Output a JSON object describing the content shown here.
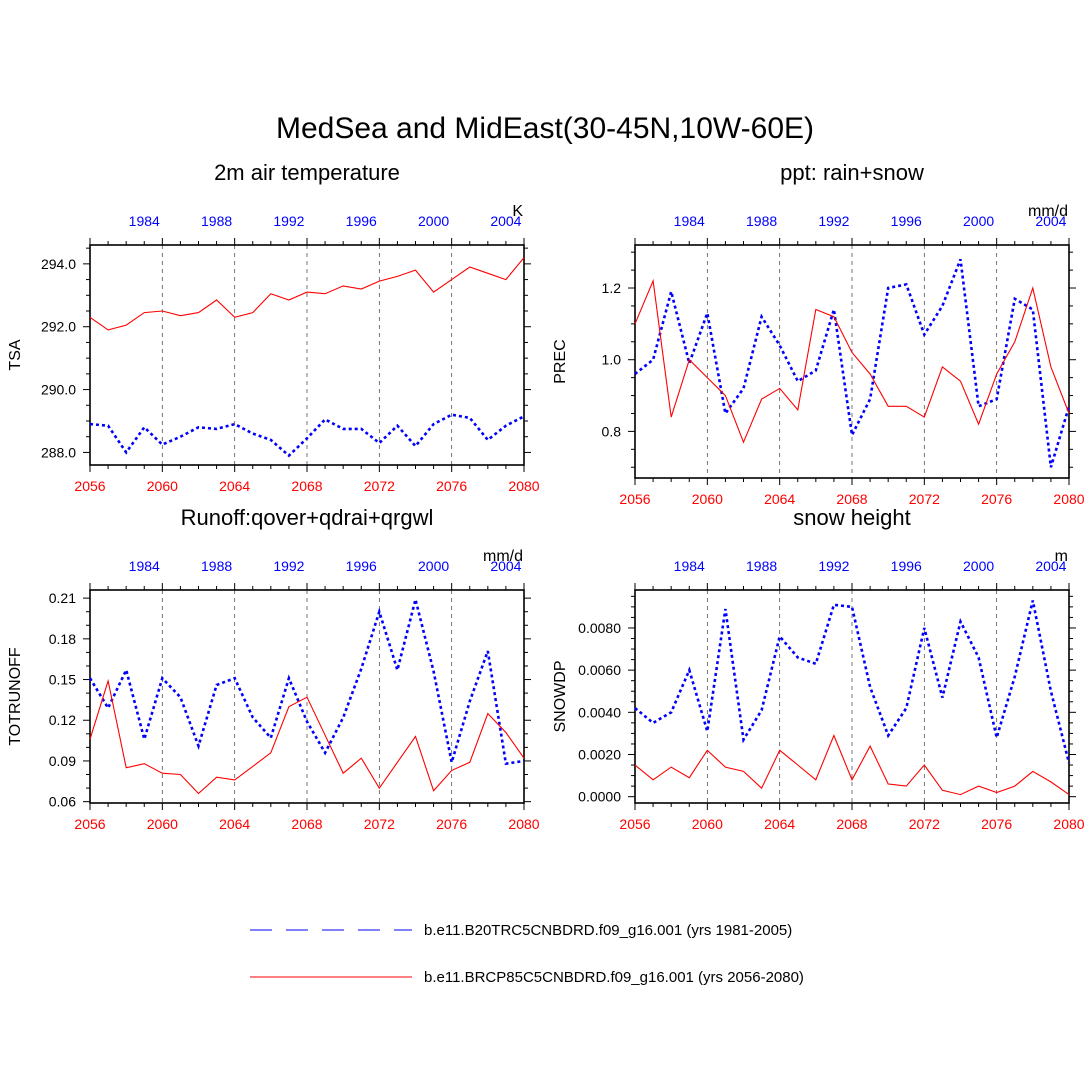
{
  "main_title": "MedSea and MidEast(30-45N,10W-60E)",
  "colors": {
    "historical": "#0000ff",
    "future": "#ff0000",
    "axis": "#000000"
  },
  "legend": {
    "historical_label": "b.e11.B20TRC5CNBDRD.f09_g16.001 (yrs 1981-2005)",
    "future_label": "b.e11.BRCP85C5CNBDRD.f09_g16.001 (yrs 2056-2080)"
  },
  "chart_data": [
    {
      "type": "line",
      "title": "2m air temperature",
      "ylabel": "TSA",
      "units": "K",
      "ylim": [
        287.6,
        294.6
      ],
      "yticks": [
        288,
        290,
        292,
        294
      ],
      "ytick_labels": [
        "288.0",
        "290.0",
        "292.0",
        "294.0"
      ],
      "yminor_step": 0.5,
      "top_ticks": [
        "1984",
        "1988",
        "1992",
        "1996",
        "2000",
        "2004"
      ],
      "bottom_ticks": [
        "2056",
        "2060",
        "2064",
        "2068",
        "2072",
        "2076",
        "2080"
      ],
      "series": [
        {
          "name": "b.e11.B20TRC5CNBDRD.f09_g16.001 (yrs 1981-2005)",
          "x": [
            1981,
            1982,
            1983,
            1984,
            1985,
            1986,
            1987,
            1988,
            1989,
            1990,
            1991,
            1992,
            1993,
            1994,
            1995,
            1996,
            1997,
            1998,
            1999,
            2000,
            2001,
            2002,
            2003,
            2004,
            2005
          ],
          "values": [
            288.9,
            288.85,
            288.0,
            288.8,
            288.25,
            288.5,
            288.8,
            288.75,
            288.9,
            288.6,
            288.4,
            287.9,
            288.45,
            289.05,
            288.75,
            288.75,
            288.3,
            288.85,
            288.2,
            288.9,
            289.2,
            289.1,
            288.4,
            288.85,
            289.15
          ]
        },
        {
          "name": "b.e11.BRCP85C5CNBDRD.f09_g16.001 (yrs 2056-2080)",
          "x": [
            2056,
            2057,
            2058,
            2059,
            2060,
            2061,
            2062,
            2063,
            2064,
            2065,
            2066,
            2067,
            2068,
            2069,
            2070,
            2071,
            2072,
            2073,
            2074,
            2075,
            2076,
            2077,
            2078,
            2079,
            2080
          ],
          "values": [
            292.3,
            291.9,
            292.05,
            292.45,
            292.5,
            292.35,
            292.45,
            292.85,
            292.3,
            292.45,
            293.05,
            292.85,
            293.1,
            293.05,
            293.3,
            293.2,
            293.45,
            293.6,
            293.8,
            293.1,
            293.5,
            293.9,
            293.7,
            293.5,
            294.2
          ]
        }
      ]
    },
    {
      "type": "line",
      "title": "ppt: rain+snow",
      "ylabel": "PREC",
      "units": "mm/d",
      "ylim": [
        0.67,
        1.32
      ],
      "yticks": [
        0.8,
        1.0,
        1.2
      ],
      "ytick_labels": [
        "0.8",
        "1.0",
        "1.2"
      ],
      "yminor_step": 0.05,
      "top_ticks": [
        "1984",
        "1988",
        "1992",
        "1996",
        "2000",
        "2004"
      ],
      "bottom_ticks": [
        "2056",
        "2060",
        "2064",
        "2068",
        "2072",
        "2076",
        "2080"
      ],
      "series": [
        {
          "name": "b.e11.B20TRC5CNBDRD.f09_g16.001 (yrs 1981-2005)",
          "x": [
            1981,
            1982,
            1983,
            1984,
            1985,
            1986,
            1987,
            1988,
            1989,
            1990,
            1991,
            1992,
            1993,
            1994,
            1995,
            1996,
            1997,
            1998,
            1999,
            2000,
            2001,
            2002,
            2003,
            2004,
            2005
          ],
          "values": [
            0.96,
            1.0,
            1.19,
            0.99,
            1.13,
            0.85,
            0.92,
            1.12,
            1.04,
            0.94,
            0.97,
            1.14,
            0.79,
            0.89,
            1.2,
            1.21,
            1.07,
            1.15,
            1.28,
            0.87,
            0.89,
            1.17,
            1.14,
            0.7,
            0.87
          ]
        },
        {
          "name": "b.e11.BRCP85C5CNBDRD.f09_g16.001 (yrs 2056-2080)",
          "x": [
            2056,
            2057,
            2058,
            2059,
            2060,
            2061,
            2062,
            2063,
            2064,
            2065,
            2066,
            2067,
            2068,
            2069,
            2070,
            2071,
            2072,
            2073,
            2074,
            2075,
            2076,
            2077,
            2078,
            2079,
            2080
          ],
          "values": [
            1.1,
            1.22,
            0.84,
            1.0,
            0.95,
            0.9,
            0.77,
            0.89,
            0.92,
            0.86,
            1.14,
            1.12,
            1.02,
            0.96,
            0.87,
            0.87,
            0.84,
            0.98,
            0.94,
            0.82,
            0.96,
            1.05,
            1.2,
            0.98,
            0.85
          ]
        }
      ]
    },
    {
      "type": "line",
      "title": "Runoff:qover+qdrai+qrgwl",
      "ylabel": "TOTRUNOFF",
      "units": "mm/d",
      "ylim": [
        0.059,
        0.216
      ],
      "yticks": [
        0.06,
        0.09,
        0.12,
        0.15,
        0.18,
        0.21
      ],
      "ytick_labels": [
        "0.06",
        "0.09",
        "0.12",
        "0.15",
        "0.18",
        "0.21"
      ],
      "yminor_step": 0.01,
      "top_ticks": [
        "1984",
        "1988",
        "1992",
        "1996",
        "2000",
        "2004"
      ],
      "bottom_ticks": [
        "2056",
        "2060",
        "2064",
        "2068",
        "2072",
        "2076",
        "2080"
      ],
      "series": [
        {
          "name": "b.e11.B20TRC5CNBDRD.f09_g16.001 (yrs 1981-2005)",
          "x": [
            1981,
            1982,
            1983,
            1984,
            1985,
            1986,
            1987,
            1988,
            1989,
            1990,
            1991,
            1992,
            1993,
            1994,
            1995,
            1996,
            1997,
            1998,
            1999,
            2000,
            2001,
            2002,
            2003,
            2004,
            2005
          ],
          "values": [
            0.151,
            0.129,
            0.157,
            0.106,
            0.151,
            0.137,
            0.101,
            0.146,
            0.151,
            0.122,
            0.107,
            0.151,
            0.119,
            0.096,
            0.122,
            0.158,
            0.2,
            0.157,
            0.209,
            0.156,
            0.089,
            0.134,
            0.171,
            0.088,
            0.09
          ]
        },
        {
          "name": "b.e11.BRCP85C5CNBDRD.f09_g16.001 (yrs 2056-2080)",
          "x": [
            2056,
            2057,
            2058,
            2059,
            2060,
            2061,
            2062,
            2063,
            2064,
            2065,
            2066,
            2067,
            2068,
            2069,
            2070,
            2071,
            2072,
            2073,
            2074,
            2075,
            2076,
            2077,
            2078,
            2079,
            2080
          ],
          "values": [
            0.106,
            0.149,
            0.085,
            0.088,
            0.081,
            0.08,
            0.066,
            0.078,
            0.076,
            0.086,
            0.096,
            0.13,
            0.137,
            0.109,
            0.081,
            0.092,
            0.07,
            0.089,
            0.108,
            0.068,
            0.083,
            0.089,
            0.125,
            0.111,
            0.092
          ]
        }
      ]
    },
    {
      "type": "line",
      "title": "snow height",
      "ylabel": "SNOWDP",
      "units": "m",
      "ylim": [
        -0.0003,
        0.0098
      ],
      "yticks": [
        0.0,
        0.002,
        0.004,
        0.006,
        0.008
      ],
      "ytick_labels": [
        "0.0000",
        "0.0020",
        "0.0040",
        "0.0060",
        "0.0080"
      ],
      "yminor_step": 0.0005,
      "top_ticks": [
        "1984",
        "1988",
        "1992",
        "1996",
        "2000",
        "2004"
      ],
      "bottom_ticks": [
        "2056",
        "2060",
        "2064",
        "2068",
        "2072",
        "2076",
        "2080"
      ],
      "series": [
        {
          "name": "b.e11.B20TRC5CNBDRD.f09_g16.001 (yrs 1981-2005)",
          "x": [
            1981,
            1982,
            1983,
            1984,
            1985,
            1986,
            1987,
            1988,
            1989,
            1990,
            1991,
            1992,
            1993,
            1994,
            1995,
            1996,
            1997,
            1998,
            1999,
            2000,
            2001,
            2002,
            2003,
            2004,
            2005
          ],
          "values": [
            0.0042,
            0.0035,
            0.004,
            0.006,
            0.0031,
            0.0089,
            0.0027,
            0.0041,
            0.0076,
            0.0066,
            0.0063,
            0.0091,
            0.009,
            0.0052,
            0.0029,
            0.0042,
            0.008,
            0.0047,
            0.0083,
            0.0066,
            0.0028,
            0.0057,
            0.0093,
            0.005,
            0.0016
          ]
        },
        {
          "name": "b.e11.BRCP85C5CNBDRD.f09_g16.001 (yrs 2056-2080)",
          "x": [
            2056,
            2057,
            2058,
            2059,
            2060,
            2061,
            2062,
            2063,
            2064,
            2065,
            2066,
            2067,
            2068,
            2069,
            2070,
            2071,
            2072,
            2073,
            2074,
            2075,
            2076,
            2077,
            2078,
            2079,
            2080
          ],
          "values": [
            0.0015,
            0.0008,
            0.0014,
            0.0009,
            0.0022,
            0.0014,
            0.0012,
            0.0004,
            0.0022,
            0.0015,
            0.0008,
            0.0029,
            0.0008,
            0.0024,
            0.0006,
            0.0005,
            0.0015,
            0.0003,
            0.0001,
            0.0005,
            0.0002,
            0.0005,
            0.0012,
            0.0007,
            0.0001
          ]
        }
      ]
    }
  ]
}
